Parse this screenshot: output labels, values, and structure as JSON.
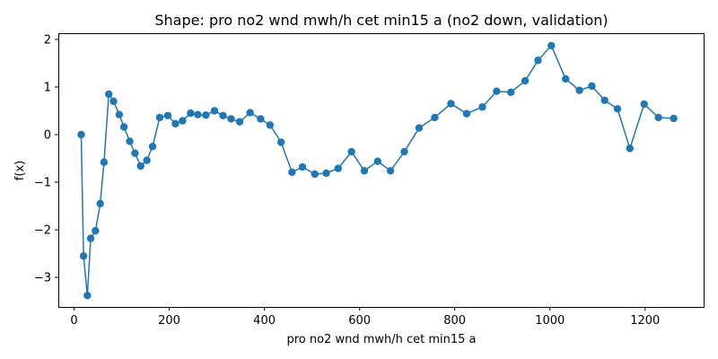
{
  "chart_data": {
    "type": "line",
    "title": "Shape: pro no2 wnd mwh/h cet min15 a (no2 down, validation)",
    "xlabel": "pro no2 wnd mwh/h cet min15 a",
    "ylabel": "f(x)",
    "xlim": [
      -33,
      1323
    ],
    "ylim": [
      -3.62,
      2.13
    ],
    "xticks": [
      0,
      200,
      400,
      600,
      800,
      1000,
      1200
    ],
    "yticks": [
      -3,
      -2,
      -1,
      0,
      1,
      2
    ],
    "ytick_labels": [
      "−3",
      "−2",
      "−1",
      "0",
      "1",
      "2"
    ],
    "grid": false,
    "markers": true,
    "series": [
      {
        "name": "",
        "color": "#1f77b4",
        "x": [
          15,
          20,
          28,
          35,
          45,
          55,
          63,
          73,
          83,
          95,
          105,
          117,
          128,
          140,
          153,
          165,
          180,
          197,
          213,
          228,
          245,
          260,
          277,
          295,
          313,
          330,
          348,
          370,
          392,
          412,
          435,
          458,
          480,
          506,
          530,
          555,
          583,
          610,
          638,
          665,
          694,
          725,
          758,
          792,
          825,
          858,
          888,
          918,
          948,
          975,
          1003,
          1033,
          1062,
          1088,
          1115,
          1142,
          1168,
          1198,
          1228,
          1260
        ],
        "y": [
          0.0,
          -2.55,
          -3.38,
          -2.18,
          -2.02,
          -1.45,
          -0.58,
          0.85,
          0.7,
          0.42,
          0.16,
          -0.14,
          -0.39,
          -0.66,
          -0.54,
          -0.25,
          0.36,
          0.4,
          0.23,
          0.29,
          0.45,
          0.42,
          0.41,
          0.5,
          0.4,
          0.33,
          0.27,
          0.46,
          0.33,
          0.2,
          -0.16,
          -0.79,
          -0.68,
          -0.83,
          -0.81,
          -0.71,
          -0.36,
          -0.76,
          -0.56,
          -0.76,
          -0.36,
          0.14,
          0.36,
          0.65,
          0.44,
          0.58,
          0.91,
          0.89,
          1.13,
          1.56,
          1.87,
          1.17,
          0.93,
          1.02,
          0.72,
          0.54,
          -0.29,
          0.64,
          0.36,
          0.34
        ]
      }
    ]
  }
}
